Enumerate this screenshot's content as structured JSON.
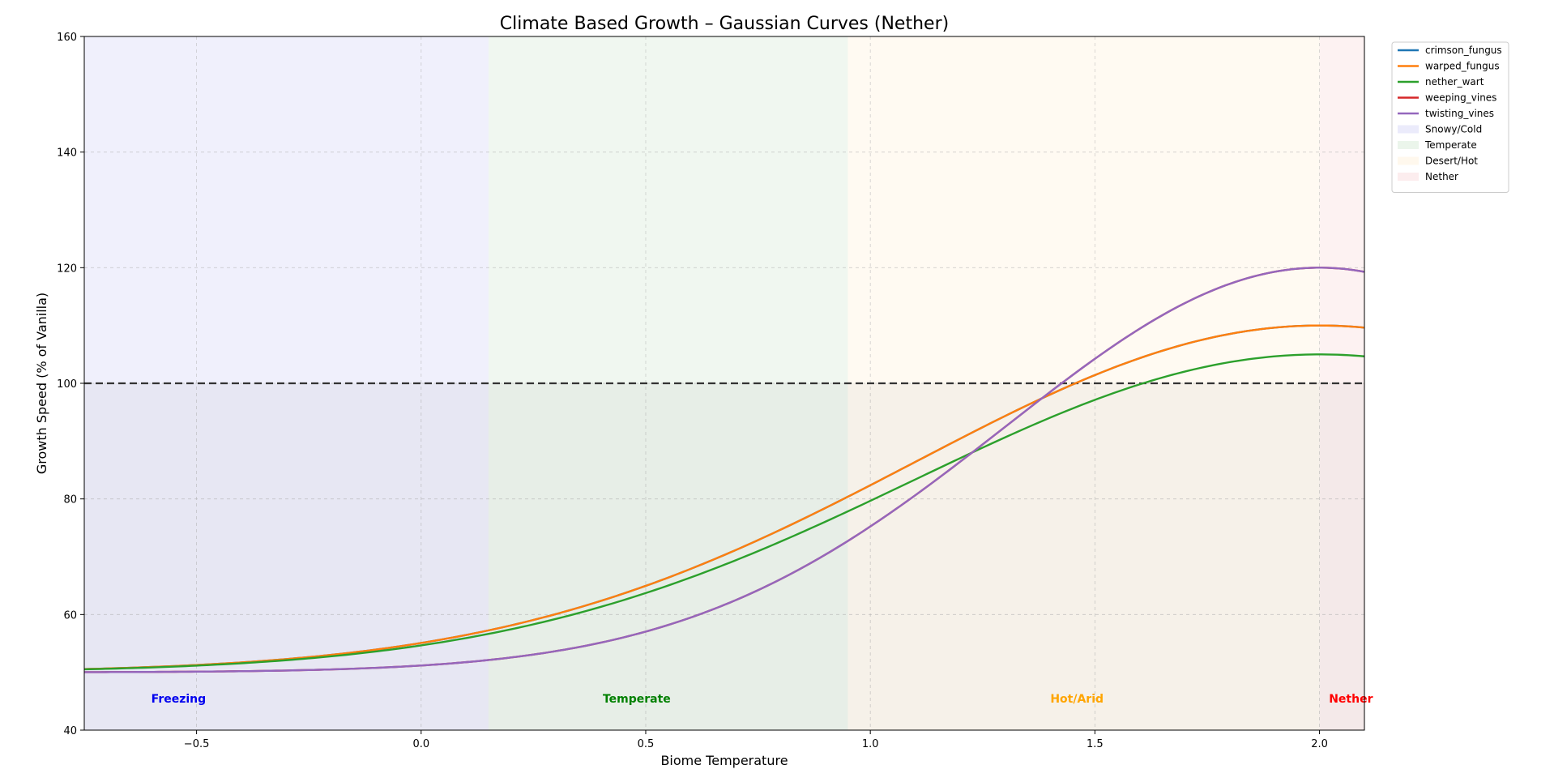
{
  "chart_data": {
    "type": "line",
    "title": "Climate Based Growth – Gaussian Curves (Nether)",
    "xlabel": "Biome Temperature",
    "ylabel": "Growth Speed (% of Vanilla)",
    "xlim": [
      -0.75,
      2.1
    ],
    "ylim": [
      40,
      160
    ],
    "xticks": [
      -0.5,
      0.0,
      0.5,
      1.0,
      1.5,
      2.0
    ],
    "xtick_labels": [
      "−0.5",
      "0.0",
      "0.5",
      "1.0",
      "1.5",
      "2.0"
    ],
    "yticks": [
      40,
      60,
      80,
      100,
      120,
      140,
      160
    ],
    "ytick_labels": [
      "40",
      "60",
      "80",
      "100",
      "120",
      "140",
      "160"
    ],
    "grid": true,
    "legend_position": "outside-top-right",
    "reference_line": {
      "y": 100,
      "style": "dashed",
      "color": "#333333"
    },
    "regions": [
      {
        "name": "Snowy/Cold",
        "x": [
          -0.75,
          0.15
        ],
        "color": "#e6e6fa"
      },
      {
        "name": "Temperate",
        "x": [
          0.15,
          0.95
        ],
        "color": "#e6f2e6"
      },
      {
        "name": "Desert/Hot",
        "x": [
          0.95,
          2.0
        ],
        "color": "#fff6e9"
      },
      {
        "name": "Nether",
        "x": [
          2.0,
          2.1
        ],
        "color": "#fbe9ea"
      }
    ],
    "region_labels": [
      {
        "text": "Freezing",
        "x": -0.54,
        "y": 45.5,
        "color": "#0000ee"
      },
      {
        "text": "Temperate",
        "x": 0.48,
        "y": 45.5,
        "color": "#008000"
      },
      {
        "text": "Hot/Arid",
        "x": 1.46,
        "y": 45.5,
        "color": "#ffa500"
      },
      {
        "text": "Nether",
        "x": 2.07,
        "y": 45.5,
        "color": "#ff0000"
      }
    ],
    "series": [
      {
        "name": "crimson_fungus",
        "color": "#1f77b4",
        "min": 50,
        "max": 110,
        "center": 2.0,
        "sigma": 0.9
      },
      {
        "name": "warped_fungus",
        "color": "#ff7f0e",
        "min": 50,
        "max": 110,
        "center": 2.0,
        "sigma": 0.9
      },
      {
        "name": "nether_wart",
        "color": "#2ca02c",
        "min": 50,
        "max": 105,
        "center": 2.0,
        "sigma": 0.9
      },
      {
        "name": "weeping_vines",
        "color": "#d62728",
        "min": 50,
        "max": 120,
        "center": 2.0,
        "sigma": 0.7
      },
      {
        "name": "twisting_vines",
        "color": "#9467bd",
        "min": 50,
        "max": 120,
        "center": 2.0,
        "sigma": 0.7
      }
    ],
    "sample_points": {
      "x": [
        -0.75,
        0.0,
        0.5,
        1.0,
        1.5,
        2.0,
        2.1
      ],
      "crimson_fungus": [
        51.3,
        58.1,
        69.5,
        86.2,
        103.0,
        110.0,
        109.7
      ],
      "warped_fungus": [
        51.3,
        58.1,
        69.5,
        86.2,
        103.0,
        110.0,
        109.7
      ],
      "nether_wart": [
        51.2,
        57.4,
        67.9,
        83.2,
        98.6,
        105.0,
        104.7
      ],
      "weeping_vines": [
        50.2,
        53.1,
        62.2,
        82.6,
        107.5,
        120.0,
        119.3
      ],
      "twisting_vines": [
        50.2,
        53.1,
        62.2,
        82.6,
        107.5,
        120.0,
        119.3
      ]
    }
  }
}
